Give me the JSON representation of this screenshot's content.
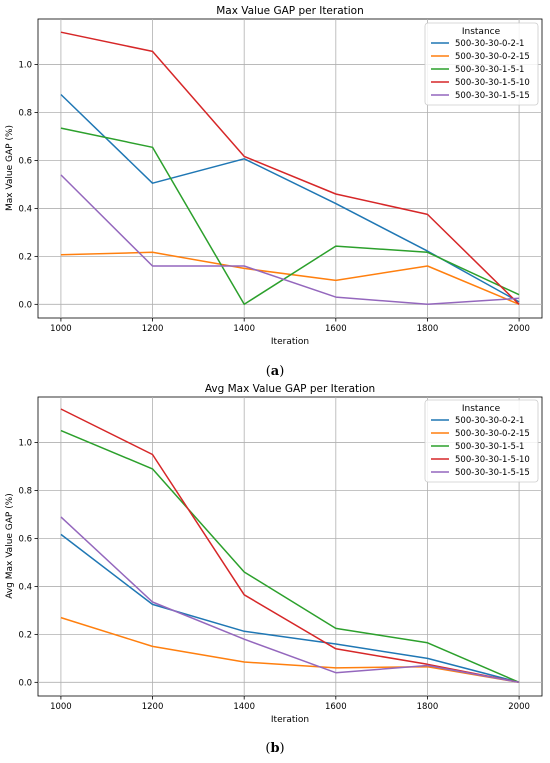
{
  "colors": [
    "#1f77b4",
    "#ff7f0e",
    "#2ca02c",
    "#d62728",
    "#9467bd"
  ],
  "captions": {
    "a_open": "(",
    "a": "a",
    "a_close": ")",
    "b_open": "(",
    "b": "b",
    "b_close": ")"
  },
  "chart_data": [
    {
      "type": "line",
      "title": "Max Value GAP per Iteration",
      "xlabel": "Iteration",
      "ylabel": "Max Value GAP (%)",
      "x": [
        1000,
        1200,
        1400,
        1600,
        1800,
        2000
      ],
      "xlim": [
        950,
        2050
      ],
      "ylim": [
        -0.057,
        1.19
      ],
      "xticks": [
        "1000",
        "1200",
        "1400",
        "1600",
        "1800",
        "2000"
      ],
      "yticks": [
        "0.0",
        "0.2",
        "0.4",
        "0.6",
        "0.8",
        "1.0"
      ],
      "grid": true,
      "legend_title": "Instance",
      "legend_position": "top-right",
      "series": [
        {
          "name": "500-30-30-0-2-1",
          "values": [
            0.875,
            0.505,
            0.607,
            0.42,
            0.222,
            0.01
          ]
        },
        {
          "name": "500-30-30-0-2-15",
          "values": [
            0.207,
            0.217,
            0.15,
            0.1,
            0.16,
            0.0
          ]
        },
        {
          "name": "500-30-30-1-5-1",
          "values": [
            0.735,
            0.655,
            0.0,
            0.243,
            0.217,
            0.04
          ]
        },
        {
          "name": "500-30-30-1-5-10",
          "values": [
            1.135,
            1.055,
            0.617,
            0.46,
            0.375,
            0.0
          ]
        },
        {
          "name": "500-30-30-1-5-15",
          "values": [
            0.54,
            0.16,
            0.16,
            0.03,
            0.0,
            0.025
          ]
        }
      ]
    },
    {
      "type": "line",
      "title": "Avg Max Value GAP per Iteration",
      "xlabel": "Iteration",
      "ylabel": "Avg Max Value GAP (%)",
      "x": [
        1000,
        1200,
        1400,
        1600,
        1800,
        2000
      ],
      "xlim": [
        950,
        2050
      ],
      "ylim": [
        -0.057,
        1.19
      ],
      "xticks": [
        "1000",
        "1200",
        "1400",
        "1600",
        "1800",
        "2000"
      ],
      "yticks": [
        "0.0",
        "0.2",
        "0.4",
        "0.6",
        "0.8",
        "1.0"
      ],
      "grid": true,
      "legend_title": "Instance",
      "legend_position": "top-right",
      "series": [
        {
          "name": "500-30-30-0-2-1",
          "values": [
            0.617,
            0.325,
            0.213,
            0.16,
            0.1,
            0.0
          ]
        },
        {
          "name": "500-30-30-0-2-15",
          "values": [
            0.27,
            0.15,
            0.085,
            0.06,
            0.065,
            0.0
          ]
        },
        {
          "name": "500-30-30-1-5-1",
          "values": [
            1.05,
            0.89,
            0.46,
            0.225,
            0.165,
            0.0
          ]
        },
        {
          "name": "500-30-30-1-5-10",
          "values": [
            1.14,
            0.95,
            0.365,
            0.14,
            0.075,
            0.0
          ]
        },
        {
          "name": "500-30-30-1-5-15",
          "values": [
            0.69,
            0.335,
            0.18,
            0.04,
            0.07,
            0.0
          ]
        }
      ]
    }
  ]
}
